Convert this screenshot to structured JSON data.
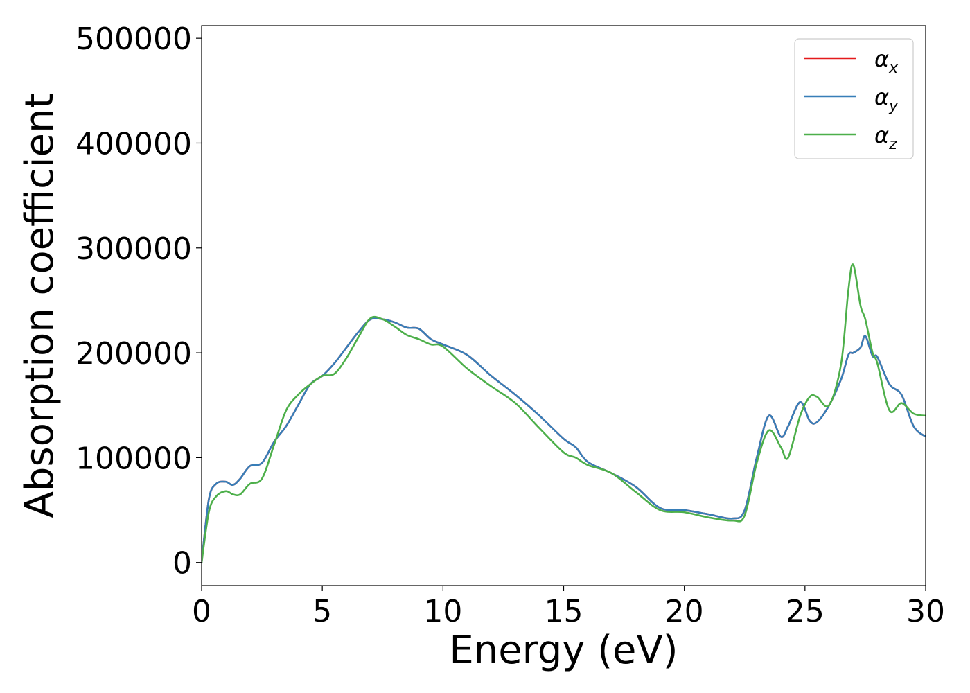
{
  "chart_data": {
    "type": "line",
    "xlabel": "Energy (eV)",
    "ylabel": "Absorption coefficient",
    "xlim": [
      0,
      30
    ],
    "ylim": [
      -22000,
      512000
    ],
    "xticks": [
      0,
      5,
      10,
      15,
      20,
      25,
      30
    ],
    "xtick_labels": [
      "0",
      "5",
      "10",
      "15",
      "20",
      "25",
      "30"
    ],
    "yticks": [
      0,
      100000,
      200000,
      300000,
      400000,
      500000
    ],
    "ytick_labels": [
      "0",
      "100000",
      "200000",
      "300000",
      "400000",
      "500000"
    ],
    "grid": false,
    "legend_position": "top-right",
    "x": [
      0,
      0.3,
      0.6,
      1.0,
      1.3,
      1.6,
      2.0,
      2.5,
      3.0,
      3.5,
      4.0,
      4.5,
      5.0,
      5.5,
      6.0,
      6.5,
      7.0,
      7.5,
      8.0,
      8.5,
      9.0,
      9.5,
      10.0,
      11.0,
      12.0,
      13.0,
      14.0,
      15.0,
      15.5,
      16.0,
      17.0,
      18.0,
      19.0,
      20.0,
      21.0,
      22.0,
      22.5,
      23.0,
      23.5,
      24.0,
      24.3,
      24.8,
      25.2,
      25.5,
      26.0,
      26.5,
      26.8,
      27.0,
      27.3,
      27.5,
      27.8,
      28.0,
      28.5,
      29.0,
      29.5,
      30.0
    ],
    "series": [
      {
        "name": "α_x",
        "name_base": "α",
        "name_sub": "x",
        "color": "#e41a1c",
        "values": [
          0,
          60000,
          75000,
          77000,
          74000,
          80000,
          92000,
          95000,
          115000,
          130000,
          150000,
          170000,
          178000,
          190000,
          205000,
          220000,
          232000,
          232000,
          229000,
          224000,
          223000,
          213000,
          208000,
          198000,
          178000,
          160000,
          140000,
          118000,
          110000,
          96000,
          85000,
          72000,
          52000,
          50000,
          46000,
          42000,
          50000,
          100000,
          140000,
          120000,
          130000,
          153000,
          135000,
          134000,
          150000,
          175000,
          198000,
          200000,
          205000,
          216000,
          197000,
          196000,
          170000,
          160000,
          130000,
          120000
        ]
      },
      {
        "name": "α_y",
        "name_base": "α",
        "name_sub": "y",
        "color": "#377eb8",
        "values": [
          0,
          60000,
          75000,
          77000,
          74000,
          80000,
          92000,
          95000,
          115000,
          130000,
          150000,
          170000,
          178000,
          190000,
          205000,
          220000,
          232000,
          232000,
          229000,
          224000,
          223000,
          213000,
          208000,
          198000,
          178000,
          160000,
          140000,
          118000,
          110000,
          96000,
          85000,
          72000,
          52000,
          50000,
          46000,
          42000,
          50000,
          100000,
          140000,
          120000,
          130000,
          153000,
          135000,
          134000,
          150000,
          175000,
          198000,
          200000,
          205000,
          216000,
          197000,
          196000,
          170000,
          160000,
          130000,
          120000
        ]
      },
      {
        "name": "α_z",
        "name_base": "α",
        "name_sub": "z",
        "color": "#4daf4a",
        "values": [
          0,
          48000,
          63000,
          68000,
          65000,
          65000,
          75000,
          80000,
          112000,
          145000,
          160000,
          170000,
          178000,
          180000,
          195000,
          215000,
          233000,
          232000,
          225000,
          217000,
          213000,
          208000,
          206000,
          185000,
          168000,
          152000,
          128000,
          105000,
          100000,
          93000,
          85000,
          67000,
          50000,
          48000,
          43000,
          40000,
          45000,
          95000,
          126000,
          110000,
          100000,
          140000,
          158000,
          158000,
          150000,
          190000,
          260000,
          284000,
          245000,
          232000,
          200000,
          190000,
          145000,
          152000,
          142000,
          140000
        ]
      }
    ]
  }
}
